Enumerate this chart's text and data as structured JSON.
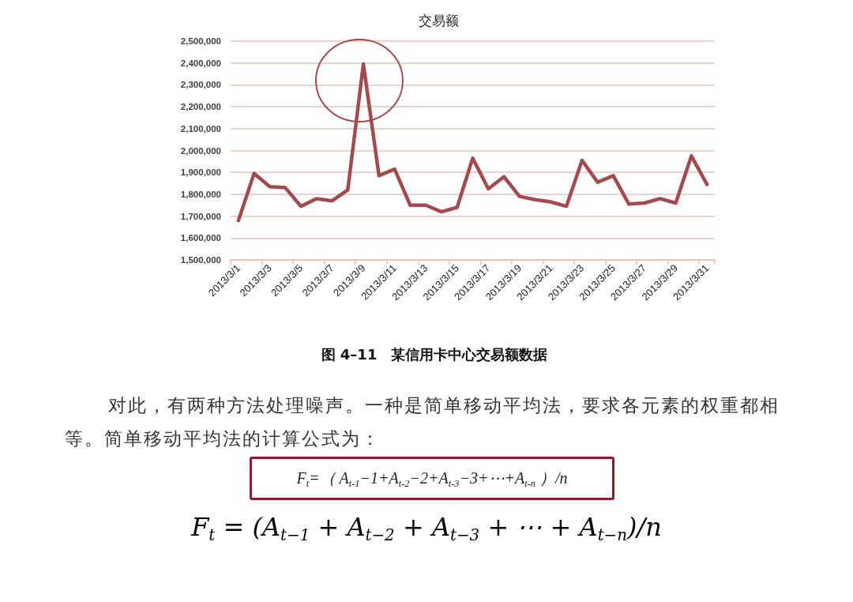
{
  "chart_data": {
    "type": "line",
    "title": "交易额",
    "categories": [
      "2013/3/1",
      null,
      "2013/3/3",
      null,
      "2013/3/5",
      null,
      "2013/3/7",
      null,
      "2013/3/9",
      null,
      "2013/3/11",
      null,
      "2013/3/13",
      null,
      "2013/3/15",
      null,
      "2013/3/17",
      null,
      "2013/3/19",
      null,
      "2013/3/21",
      null,
      "2013/3/23",
      null,
      "2013/3/25",
      null,
      "2013/3/27",
      null,
      "2013/3/29",
      null,
      "2013/3/31"
    ],
    "values": [
      1680000,
      1895000,
      1835000,
      1830000,
      1745000,
      1780000,
      1770000,
      1820000,
      2395000,
      1885000,
      1915000,
      1750000,
      1750000,
      1720000,
      1740000,
      1965000,
      1825000,
      1880000,
      1790000,
      1775000,
      1765000,
      1745000,
      1955000,
      1855000,
      1885000,
      1755000,
      1760000,
      1780000,
      1760000,
      1975000,
      1845000
    ],
    "color": "#a24b4f",
    "ylim": [
      1500000,
      2500000
    ],
    "yticks": [
      {
        "value": 1500000,
        "label": "1,500,000"
      },
      {
        "value": 1600000,
        "label": "1,600,000"
      },
      {
        "value": 1700000,
        "label": "1,700,000"
      },
      {
        "value": 1800000,
        "label": "1,800,000"
      },
      {
        "value": 1900000,
        "label": "1,900,000"
      },
      {
        "value": 2000000,
        "label": "2,000,000"
      },
      {
        "value": 2100000,
        "label": "2,100,000"
      },
      {
        "value": 2200000,
        "label": "2,200,000"
      },
      {
        "value": 2300000,
        "label": "2,300,000"
      },
      {
        "value": 2400000,
        "label": "2,400,000"
      },
      {
        "value": 2500000,
        "label": "2,500,000"
      }
    ],
    "grid": "y",
    "marker": "none",
    "line_style": "solid",
    "annotations": [
      "图 4–11　某信用卡中心交易额数据",
      "对此，有两种方法处理噪声。一种是简单移动平均法，要求各元素的权重都相等。简单移动平均法的计算公式为：",
      "F$_{t}$=（ A$_{t-1}$−1+A$_{t-2}$−2+A$_{t-3}$−3+⋯+A$_{t-n}$ ）/n",
      "F$_{t}$ = (A$_{t−1}$ + A$_{t−2}$ + A$_{t−3}$ + ⋯ + A$_{t−n}$)/n"
    ]
  }
}
